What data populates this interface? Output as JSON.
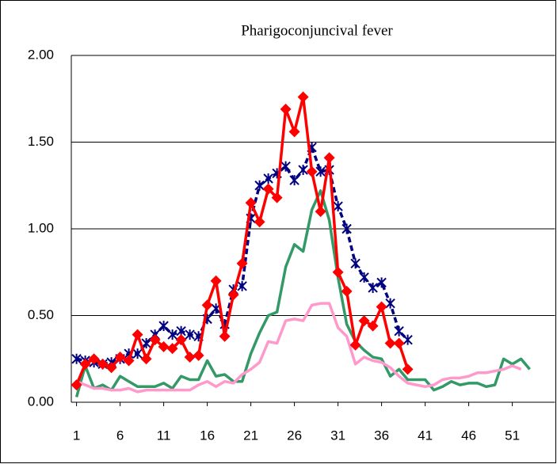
{
  "chart_data": {
    "type": "line",
    "title": "Pharigoconjuncival fever",
    "x": [
      1,
      2,
      3,
      4,
      5,
      6,
      7,
      8,
      9,
      10,
      11,
      12,
      13,
      14,
      15,
      16,
      17,
      18,
      19,
      20,
      21,
      22,
      23,
      24,
      25,
      26,
      27,
      28,
      29,
      30,
      31,
      32,
      33,
      34,
      35,
      36,
      37,
      38,
      39,
      40,
      41,
      42,
      43,
      44,
      45,
      46,
      47,
      48,
      49,
      50,
      51,
      52,
      53
    ],
    "xlim": [
      0.4,
      55.9
    ],
    "xticks": [
      1,
      6,
      11,
      16,
      21,
      26,
      31,
      36,
      41,
      46,
      51
    ],
    "ylim": [
      0,
      2
    ],
    "yticks": [
      {
        "value": 0,
        "label": "0.00"
      },
      {
        "value": 0.5,
        "label": "0.50"
      },
      {
        "value": 1,
        "label": "1.00"
      },
      {
        "value": 1.5,
        "label": "1.50"
      },
      {
        "value": 2,
        "label": "2.00"
      }
    ],
    "grid": true,
    "series": [
      {
        "color": "#339966",
        "line_style": "solid",
        "marker": "none",
        "values": [
          0.03,
          0.21,
          0.08,
          0.1,
          0.07,
          0.15,
          0.12,
          0.09,
          0.09,
          0.09,
          0.11,
          0.08,
          0.15,
          0.13,
          0.13,
          0.24,
          0.15,
          0.16,
          0.12,
          0.12,
          0.28,
          0.4,
          0.5,
          0.52,
          0.78,
          0.91,
          0.87,
          1.11,
          1.22,
          1.05,
          0.72,
          0.45,
          0.35,
          0.3,
          0.26,
          0.25,
          0.15,
          0.19,
          0.13,
          0.13,
          0.13,
          0.07,
          0.09,
          0.12,
          0.1,
          0.11,
          0.11,
          0.09,
          0.1,
          0.25,
          0.22,
          0.25,
          0.19
        ]
      },
      {
        "color": "#ff99cc",
        "line_style": "solid",
        "marker": "none",
        "values": [
          0.12,
          0.1,
          0.08,
          0.08,
          0.07,
          0.07,
          0.08,
          0.06,
          0.07,
          0.07,
          0.07,
          0.07,
          0.07,
          0.07,
          0.1,
          0.12,
          0.09,
          0.12,
          0.11,
          0.16,
          0.19,
          0.23,
          0.35,
          0.34,
          0.47,
          0.48,
          0.47,
          0.56,
          0.57,
          0.57,
          0.43,
          0.38,
          0.22,
          0.26,
          0.24,
          0.23,
          0.2,
          0.15,
          0.11,
          0.1,
          0.09,
          0.1,
          0.13,
          0.14,
          0.14,
          0.15,
          0.17,
          0.17,
          0.18,
          0.19,
          0.21,
          0.19,
          null
        ]
      },
      {
        "color": "#000080",
        "line_style": "dashed",
        "marker": "asterisk",
        "values": [
          0.25,
          0.24,
          0.23,
          0.22,
          0.23,
          0.25,
          0.28,
          0.28,
          0.34,
          0.39,
          0.44,
          0.39,
          0.41,
          0.39,
          0.38,
          0.48,
          0.54,
          0.45,
          0.65,
          0.67,
          1.06,
          1.25,
          1.29,
          1.32,
          1.36,
          1.28,
          1.34,
          1.47,
          1.33,
          1.34,
          1.13,
          1.0,
          0.8,
          0.72,
          0.66,
          0.69,
          0.57,
          0.41,
          0.36,
          null,
          null,
          null,
          null,
          null,
          null,
          null,
          null,
          null,
          null,
          null,
          null,
          null,
          null
        ]
      },
      {
        "color": "#ff0000",
        "line_style": "solid",
        "marker": "diamond",
        "values": [
          0.1,
          0.22,
          0.25,
          0.22,
          0.2,
          0.26,
          0.24,
          0.39,
          0.25,
          0.36,
          0.32,
          0.31,
          0.36,
          0.26,
          0.27,
          0.56,
          0.7,
          0.38,
          0.62,
          0.8,
          1.15,
          1.04,
          1.23,
          1.18,
          1.69,
          1.56,
          1.76,
          1.33,
          1.1,
          1.41,
          0.75,
          0.64,
          0.33,
          0.47,
          0.44,
          0.55,
          0.34,
          0.34,
          0.19,
          null,
          null,
          null,
          null,
          null,
          null,
          null,
          null,
          null,
          null,
          null,
          null,
          null,
          null
        ]
      }
    ]
  }
}
